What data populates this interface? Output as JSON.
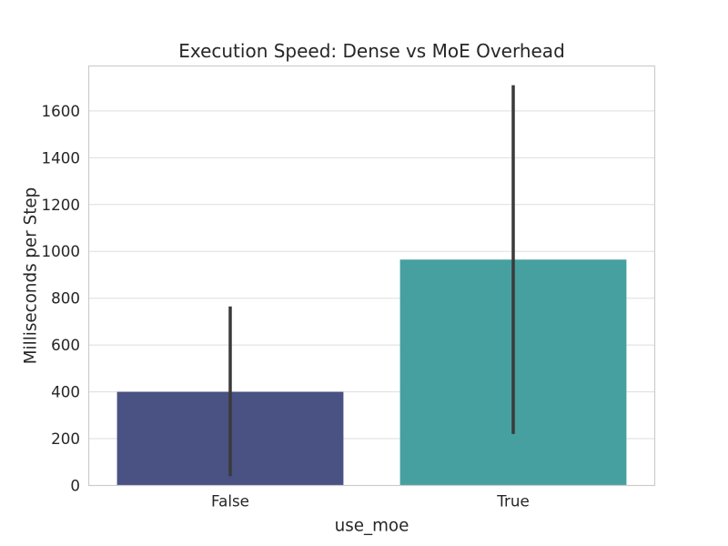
{
  "chart_data": {
    "type": "bar",
    "title": "Execution Speed: Dense vs MoE Overhead",
    "xlabel": "use_moe",
    "ylabel": "Milliseconds per Step",
    "categories": [
      "False",
      "True"
    ],
    "values": [
      400,
      965
    ],
    "error_bars": [
      {
        "low": 40,
        "high": 765
      },
      {
        "low": 220,
        "high": 1710
      }
    ],
    "yticks": [
      0,
      200,
      400,
      600,
      800,
      1000,
      1200,
      1400,
      1600
    ],
    "ylim": [
      0,
      1792
    ],
    "grid": "horizontal",
    "legend": "none",
    "bar_colors": [
      "#4a5183",
      "#46a0a0"
    ],
    "error_bar_color": "#3a3a3a",
    "grid_color": "#dddddd",
    "spine_color": "#cccccc",
    "background_color": "#ffffff",
    "text_color": "#262626"
  }
}
